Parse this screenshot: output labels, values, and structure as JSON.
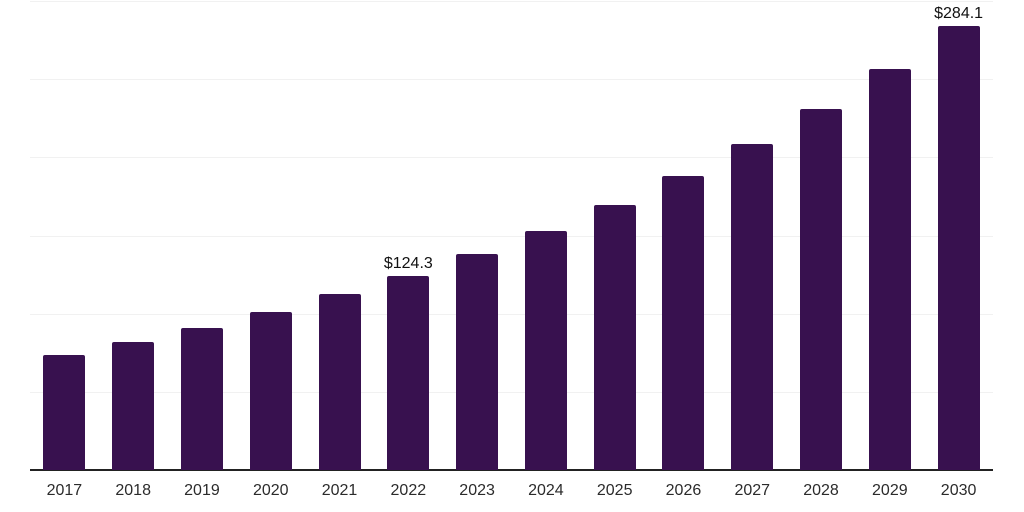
{
  "chart_data": {
    "type": "bar",
    "title": "",
    "xlabel": "",
    "ylabel": "",
    "categories": [
      "2017",
      "2018",
      "2019",
      "2020",
      "2021",
      "2022",
      "2023",
      "2024",
      "2025",
      "2026",
      "2027",
      "2028",
      "2029",
      "2030"
    ],
    "values": [
      73.4,
      82.1,
      90.6,
      101.3,
      112.4,
      124.3,
      137.9,
      152.9,
      169.6,
      188.3,
      208.5,
      231.2,
      256.3,
      284.1
    ],
    "data_labels": [
      "",
      "",
      "",
      "",
      "",
      "$124.3",
      "",
      "",
      "",
      "",
      "",
      "",
      "",
      "$284.1"
    ],
    "ylim": [
      0,
      300
    ],
    "grid_step": 50,
    "grid": "horizontal-only",
    "y_tick_labels_visible": false,
    "legend": "none",
    "colors": {
      "bar": "#38114F",
      "background": "#ffffff",
      "gridline": "#f1f1f1",
      "axis_line": "#222222",
      "tick_label": "#2b2b2b",
      "data_label": "#111111"
    }
  }
}
